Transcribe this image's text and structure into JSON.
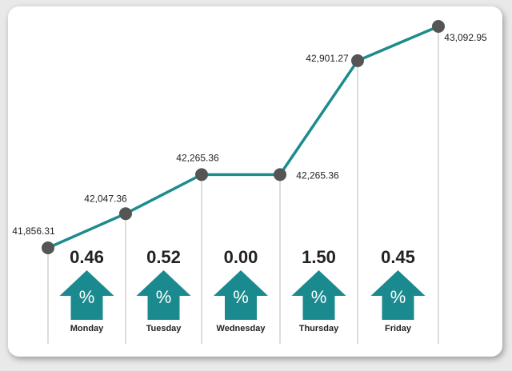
{
  "chart_data": {
    "type": "line",
    "categories": [
      null,
      "Monday",
      "Tuesday",
      "Wednesday",
      "Thursday",
      "Friday"
    ],
    "series": [
      {
        "color": "#1e8b8f",
        "values": [
          41856.31,
          42047.36,
          42265.36,
          42265.36,
          42901.27,
          43092.95
        ],
        "value_labels": [
          "41,856.31",
          "42,047.36",
          "42,265.36",
          "42,265.36",
          "42,901.27",
          "43,092.95"
        ]
      }
    ],
    "changes": {
      "values": [
        0.46,
        0.52,
        0,
        1.5,
        0.45
      ],
      "value_labels": [
        "0.46",
        "0.52",
        "0.00",
        "1.50",
        "0.45"
      ],
      "symbol": "%",
      "color": "#1a8a8f"
    }
  }
}
